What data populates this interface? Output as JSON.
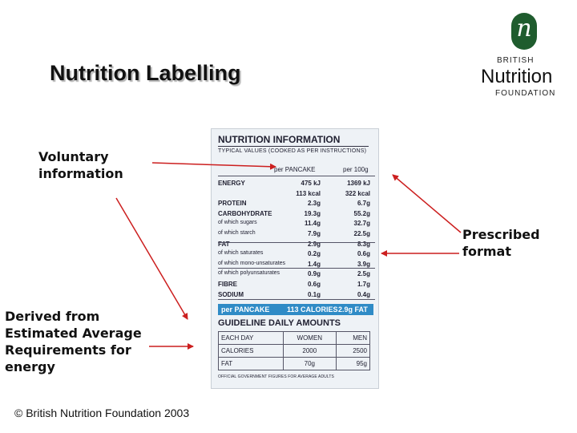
{
  "title": "Nutrition Labelling",
  "logo": {
    "mark": "n",
    "line1": "BRITISH",
    "line2": "Nutrition",
    "line3": "FOUNDATION"
  },
  "notes": {
    "voluntary": [
      "Voluntary",
      "information"
    ],
    "prescribed": [
      "Prescribed",
      "format"
    ],
    "derived": [
      "Derived from",
      "Estimated Average",
      "Requirements for",
      "energy"
    ]
  },
  "copyright": "© British Nutrition Foundation 2003",
  "label": {
    "title": "NUTRITION INFORMATION",
    "subtitle": "TYPICAL VALUES (COOKED AS PER INSTRUCTIONS)",
    "col1": "per PANCAKE",
    "col2": "per 100g",
    "rows": [
      {
        "name": "ENERGY",
        "bold": true,
        "v1": "475 kJ",
        "v2": "1369 kJ"
      },
      {
        "name": "",
        "bold": false,
        "v1": "113 kcal",
        "v2": "322 kcal"
      },
      {
        "name": "PROTEIN",
        "bold": true,
        "v1": "2.3g",
        "v2": "6.7g"
      },
      {
        "name": "CARBOHYDRATE",
        "bold": true,
        "v1": "19.3g",
        "v2": "55.2g"
      },
      {
        "name": "of which sugars",
        "bold": false,
        "v1": "11.4g",
        "v2": "32.7g"
      },
      {
        "name": "of which starch",
        "bold": false,
        "v1": "7.9g",
        "v2": "22.5g"
      },
      {
        "name": "FAT",
        "bold": true,
        "v1": "2.9g",
        "v2": "8.3g"
      },
      {
        "name": "of which saturates",
        "bold": false,
        "v1": "0.2g",
        "v2": "0.6g"
      },
      {
        "name": "of which mono-unsaturates",
        "bold": false,
        "v1": "1.4g",
        "v2": "3.9g"
      },
      {
        "name": "of which polyunsaturates",
        "bold": false,
        "v1": "0.9g",
        "v2": "2.5g"
      },
      {
        "name": "FIBRE",
        "bold": true,
        "v1": "0.6g",
        "v2": "1.7g"
      },
      {
        "name": "SODIUM",
        "bold": true,
        "v1": "0.1g",
        "v2": "0.4g"
      }
    ],
    "band": {
      "left": "per PANCAKE",
      "mid": "113 CALORIES",
      "right": "2.9g FAT"
    },
    "gda_title": "GUIDELINE DAILY AMOUNTS",
    "gda": {
      "header": [
        "EACH DAY",
        "WOMEN",
        "MEN"
      ],
      "rows": [
        [
          "CALORIES",
          "2000",
          "2500"
        ],
        [
          "FAT",
          "70g",
          "95g"
        ]
      ]
    },
    "footnote": "OFFICIAL GOVERNMENT FIGURES FOR AVERAGE ADULTS",
    "colors": {
      "band": "#2f8bc6",
      "background": "#eef2f6"
    }
  },
  "arrow_color": "#cc1f1f"
}
